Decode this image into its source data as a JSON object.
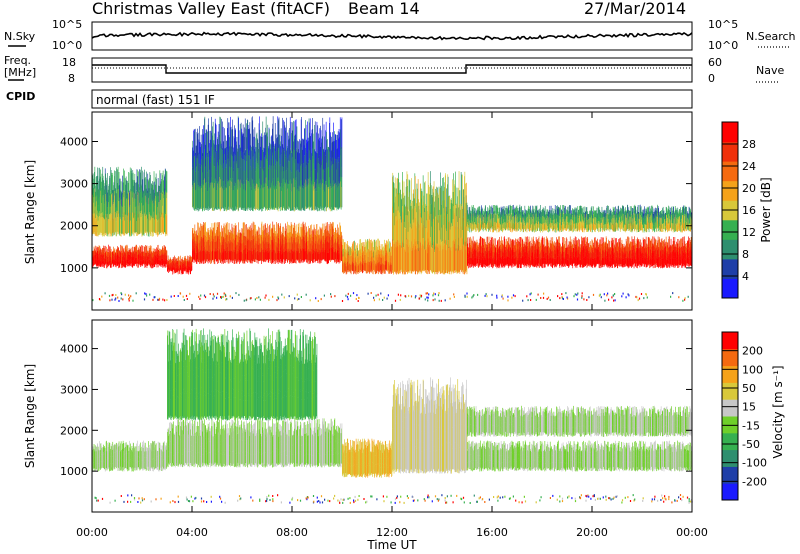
{
  "header": {
    "station": "Christmas Valley East (fitACF)",
    "beam": "Beam 14",
    "date": "27/Mar/2014"
  },
  "status_panel": {
    "nsky_label": "N.Sky",
    "nsky_ticks": [
      "10^5",
      "10^0"
    ],
    "nsearch_label": "N.Search",
    "nsearch_ticks": [
      "10^5",
      "10^0"
    ],
    "freq_label_1": "Freq.",
    "freq_label_2": "[MHz]",
    "freq_ticks": [
      "18",
      "8"
    ],
    "nave_label": "Nave",
    "nave_ticks": [
      "60",
      "0"
    ],
    "cpid_label": "CPID",
    "cpid_text": "normal (fast) 151 IF"
  },
  "colors": {
    "power_scale": [
      "#1a1aff",
      "#1f3fa8",
      "#2f8f6f",
      "#36b050",
      "#d8c83a",
      "#f5a21a",
      "#f56a10",
      "#f0300a",
      "#ff0000"
    ],
    "velocity_scale": [
      "#1a1aff",
      "#1f3fa8",
      "#2f8f6f",
      "#36b050",
      "#6fd02a",
      "#c8c8c8",
      "#d8c83a",
      "#f5a21a",
      "#f56a10",
      "#ff0000"
    ]
  },
  "chart_data": [
    {
      "type": "heatmap",
      "panel": "power",
      "xlabel": "",
      "ylabel": "Slant Range [km]",
      "ylim": [
        0,
        4700
      ],
      "y_ticks": [
        "1000",
        "2000",
        "3000",
        "4000"
      ],
      "colorbar_label": "Power [dB]",
      "colorbar_ticks": [
        "4",
        "8",
        "12",
        "16",
        "20",
        "24",
        "28"
      ],
      "colorbar_range": [
        0,
        30
      ],
      "bands": [
        {
          "t": [
            0,
            3
          ],
          "r": [
            1050,
            1550
          ],
          "value": 27
        },
        {
          "t": [
            3,
            4
          ],
          "r": [
            900,
            1300
          ],
          "value": 27
        },
        {
          "t": [
            4,
            10
          ],
          "r": [
            1150,
            2100
          ],
          "value": 24
        },
        {
          "t": [
            10,
            12
          ],
          "r": [
            900,
            1700
          ],
          "value": 20
        },
        {
          "t": [
            12,
            15
          ],
          "r": [
            900,
            3300
          ],
          "value": 16
        },
        {
          "t": [
            15,
            24
          ],
          "r": [
            1050,
            1750
          ],
          "value": 27
        },
        {
          "t": [
            15,
            24
          ],
          "r": [
            1900,
            2500
          ],
          "value": 12
        },
        {
          "t": [
            4,
            10
          ],
          "r": [
            2400,
            4600
          ],
          "value": 8
        },
        {
          "t": [
            0,
            3
          ],
          "r": [
            1800,
            3400
          ],
          "value": 12
        }
      ]
    },
    {
      "type": "heatmap",
      "panel": "velocity",
      "xlabel": "Time UT",
      "ylabel": "Slant Range [km]",
      "ylim": [
        0,
        4700
      ],
      "y_ticks": [
        "1000",
        "2000",
        "3000",
        "4000"
      ],
      "x_ticks": [
        "00:00",
        "04:00",
        "08:00",
        "12:00",
        "16:00",
        "20:00",
        "00:00"
      ],
      "colorbar_label": "Velocity [m s⁻¹]",
      "colorbar_ticks": [
        "200",
        "100",
        "50",
        "15",
        "-15",
        "-50",
        "-100",
        "-200"
      ],
      "colorbar_range": [
        -250,
        250
      ],
      "bands": [
        {
          "t": [
            0,
            3
          ],
          "r": [
            1050,
            1750
          ],
          "value": 0
        },
        {
          "t": [
            3,
            10
          ],
          "r": [
            1150,
            2300
          ],
          "value": 0
        },
        {
          "t": [
            3,
            9
          ],
          "r": [
            2300,
            4500
          ],
          "value": -60
        },
        {
          "t": [
            10,
            12
          ],
          "r": [
            900,
            1800
          ],
          "value": 100
        },
        {
          "t": [
            12,
            15
          ],
          "r": [
            1000,
            3300
          ],
          "value": 40
        },
        {
          "t": [
            15,
            24
          ],
          "r": [
            1050,
            1750
          ],
          "value": 0
        },
        {
          "t": [
            15,
            24
          ],
          "r": [
            1900,
            2600
          ],
          "value": 0
        }
      ]
    }
  ]
}
